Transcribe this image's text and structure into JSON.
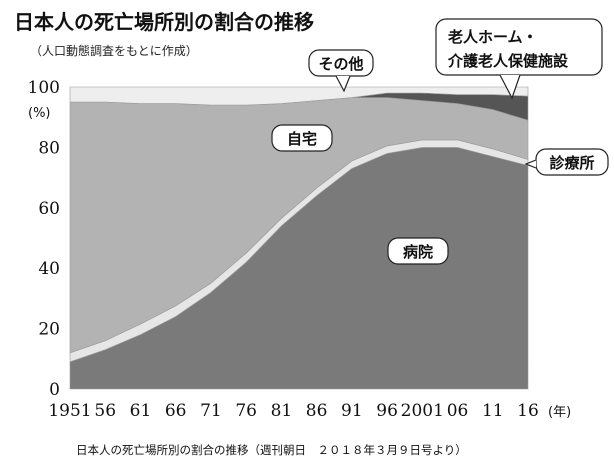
{
  "chart_data": {
    "type": "area",
    "title": "日本人の死亡場所別の割合の推移",
    "subtitle": "（人口動態調査をもとに作成）",
    "y_unit": "(%)",
    "x_unit": "(年)",
    "caption": "日本人の死亡場所別の割合の推移（週刊朝日　２０１８年３月９日号より）",
    "ylim": [
      0,
      100
    ],
    "y_ticks": [
      "0",
      "20",
      "40",
      "60",
      "80",
      "100"
    ],
    "x_ticks": [
      {
        "label": "1951",
        "value": 1951
      },
      {
        "label": "56",
        "value": 1956
      },
      {
        "label": "61",
        "value": 1961
      },
      {
        "label": "66",
        "value": 1966
      },
      {
        "label": "71",
        "value": 1971
      },
      {
        "label": "76",
        "value": 1976
      },
      {
        "label": "81",
        "value": 1981
      },
      {
        "label": "86",
        "value": 1986
      },
      {
        "label": "91",
        "value": 1991
      },
      {
        "label": "96",
        "value": 1996
      },
      {
        "label": "2001",
        "value": 2001
      },
      {
        "label": "06",
        "value": 2006
      },
      {
        "label": "11",
        "value": 2011
      },
      {
        "label": "16",
        "value": 2016
      }
    ],
    "stacked": true,
    "x": [
      1951,
      1956,
      1961,
      1966,
      1971,
      1976,
      1981,
      1986,
      1991,
      1996,
      2001,
      2006,
      2011,
      2016
    ],
    "series": [
      {
        "name": "病院",
        "values": [
          9,
          13,
          18,
          24,
          32,
          42,
          54,
          64,
          73,
          78,
          80,
          80,
          77,
          74
        ],
        "color": "#7a7a7a"
      },
      {
        "name": "診療所",
        "values": [
          3,
          3,
          3.5,
          3.5,
          3,
          3,
          2.5,
          2.5,
          2.5,
          2.5,
          2.5,
          2.5,
          2.5,
          2
        ],
        "color": "#e6e6e6"
      },
      {
        "name": "自宅",
        "values": [
          83,
          79,
          73,
          67,
          59,
          49,
          38,
          29,
          21,
          16,
          13,
          12,
          13,
          13
        ],
        "color": "#b3b3b3"
      },
      {
        "name": "老人ホーム・介護老人保健施設",
        "values": [
          0,
          0,
          0,
          0,
          0,
          0,
          0,
          0,
          0,
          1.5,
          2.5,
          3,
          5,
          8
        ],
        "color": "#555555"
      },
      {
        "name": "その他",
        "values": [
          5,
          5,
          5.5,
          5.5,
          6,
          6,
          5.5,
          4.5,
          3.5,
          2,
          2,
          2.5,
          2.5,
          3
        ],
        "color": "#eeeeee"
      }
    ],
    "annotations": [
      {
        "text": "その他"
      },
      {
        "text": "自宅"
      },
      {
        "text": "病院"
      },
      {
        "text": "診療所"
      },
      {
        "lines": [
          "老人ホーム・",
          "介護老人保健施設"
        ]
      }
    ]
  }
}
